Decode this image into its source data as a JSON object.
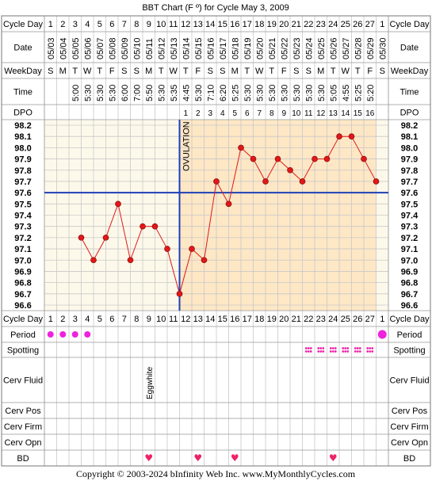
{
  "title": "BBT Chart (F º) for Cycle May 3, 2009",
  "footer": "Copyright © 2003-2024 bInfinity Web Inc.    www.MyMonthlyCycles.com",
  "ovulation_label": "OVULATION",
  "row_labels": {
    "cycle_day": "Cycle Day",
    "date": "Date",
    "weekday": "WeekDay",
    "time": "Time",
    "dpo": "DPO",
    "period": "Period",
    "spotting": "Spotting",
    "cerv_fluid": "Cerv Fluid",
    "cerv_pos": "Cerv Pos",
    "cerv_firm": "Cerv Firm",
    "cerv_opn": "Cerv Opn",
    "bd": "BD"
  },
  "colors": {
    "grid": "#c8c8c8",
    "pre_ovulation_bg": "#fdf9ea",
    "post_ovulation_bg": "#fde7c5",
    "coverline": "#1f3fb8",
    "ovulation_line": "#1f3fb8",
    "temp_line": "#e01818",
    "temp_point": "#e01818",
    "period_dot": "#ee22dd",
    "spotting_dot": "#ee22aa",
    "heart": "#ee2266"
  },
  "icons": {
    "bd": "heart-icon",
    "period": "dot-icon",
    "spotting": "spotting-dots-icon"
  },
  "days": [
    "1",
    "2",
    "3",
    "4",
    "5",
    "6",
    "7",
    "8",
    "9",
    "10",
    "11",
    "12",
    "13",
    "14",
    "15",
    "16",
    "17",
    "18",
    "19",
    "20",
    "21",
    "22",
    "23",
    "24",
    "25",
    "26",
    "27",
    "1"
  ],
  "dates": [
    "05/03",
    "05/04",
    "05/05",
    "05/06",
    "05/07",
    "05/08",
    "05/09",
    "05/10",
    "05/11",
    "05/12",
    "05/13",
    "05/14",
    "05/15",
    "05/16",
    "05/17",
    "05/18",
    "05/19",
    "05/20",
    "05/21",
    "05/22",
    "05/23",
    "05/24",
    "05/25",
    "05/26",
    "05/27",
    "05/28",
    "05/29",
    "05/30"
  ],
  "weekdays": [
    "S",
    "M",
    "T",
    "W",
    "T",
    "F",
    "S",
    "S",
    "M",
    "T",
    "W",
    "T",
    "F",
    "S",
    "S",
    "M",
    "T",
    "W",
    "T",
    "F",
    "S",
    "S",
    "M",
    "T",
    "W",
    "T",
    "F",
    "S"
  ],
  "times": [
    "",
    "",
    "5:00",
    "5:30",
    "5:30",
    "5:30",
    "6:00",
    "7:00",
    "5:50",
    "5:30",
    "5:35",
    "4:45",
    "5:30",
    "7:10",
    "6:20",
    "5:25",
    "5:30",
    "5:30",
    "5:30",
    "5:30",
    "5:30",
    "5:30",
    "5:30",
    "5:05",
    "4:55",
    "5:25",
    "5:20",
    ""
  ],
  "dpo": [
    "",
    "",
    "",
    "",
    "",
    "",
    "",
    "",
    "",
    "",
    "",
    "1",
    "2",
    "3",
    "4",
    "5",
    "6",
    "7",
    "8",
    "9",
    "10",
    "11",
    "12",
    "13",
    "14",
    "15",
    "16",
    ""
  ],
  "period": [
    true,
    true,
    true,
    true,
    false,
    false,
    false,
    false,
    false,
    false,
    false,
    false,
    false,
    false,
    false,
    false,
    false,
    false,
    false,
    false,
    false,
    false,
    false,
    false,
    false,
    false,
    false,
    true
  ],
  "spotting": [
    false,
    false,
    false,
    false,
    false,
    false,
    false,
    false,
    false,
    false,
    false,
    false,
    false,
    false,
    false,
    false,
    false,
    false,
    false,
    false,
    false,
    true,
    true,
    true,
    true,
    true,
    true,
    false
  ],
  "cerv_fluid": [
    "",
    "",
    "",
    "",
    "",
    "",
    "",
    "",
    "Eggwhite",
    "",
    "",
    "",
    "",
    "",
    "",
    "",
    "",
    "",
    "",
    "",
    "",
    "",
    "",
    "",
    "",
    "",
    "",
    ""
  ],
  "bd": [
    false,
    false,
    false,
    false,
    false,
    false,
    false,
    false,
    true,
    false,
    false,
    false,
    true,
    false,
    false,
    true,
    false,
    false,
    false,
    false,
    false,
    false,
    false,
    true,
    false,
    false,
    false,
    false
  ],
  "chart_data": {
    "type": "line",
    "title": "BBT Chart (F º) for Cycle May 3, 2009",
    "xlabel": "Cycle Day",
    "ylabel": "",
    "ylim": [
      96.6,
      98.2
    ],
    "y_ticks": [
      "98.2",
      "98.1",
      "98.0",
      "97.9",
      "97.8",
      "97.7",
      "97.6",
      "97.5",
      "97.4",
      "97.3",
      "97.2",
      "97.1",
      "97.0",
      "96.9",
      "96.8",
      "96.7",
      "96.6"
    ],
    "x": [
      1,
      2,
      3,
      4,
      5,
      6,
      7,
      8,
      9,
      10,
      11,
      12,
      13,
      14,
      15,
      16,
      17,
      18,
      19,
      20,
      21,
      22,
      23,
      24,
      25,
      26,
      27
    ],
    "values": [
      null,
      null,
      97.2,
      97.0,
      97.2,
      97.5,
      97.0,
      97.3,
      97.3,
      97.1,
      96.7,
      97.1,
      97.0,
      97.7,
      97.5,
      98.0,
      97.9,
      97.7,
      97.9,
      97.8,
      97.7,
      97.9,
      97.9,
      98.1,
      98.1,
      97.9,
      97.7
    ],
    "coverline": 97.6,
    "ovulation_day": 11,
    "grid": true
  }
}
